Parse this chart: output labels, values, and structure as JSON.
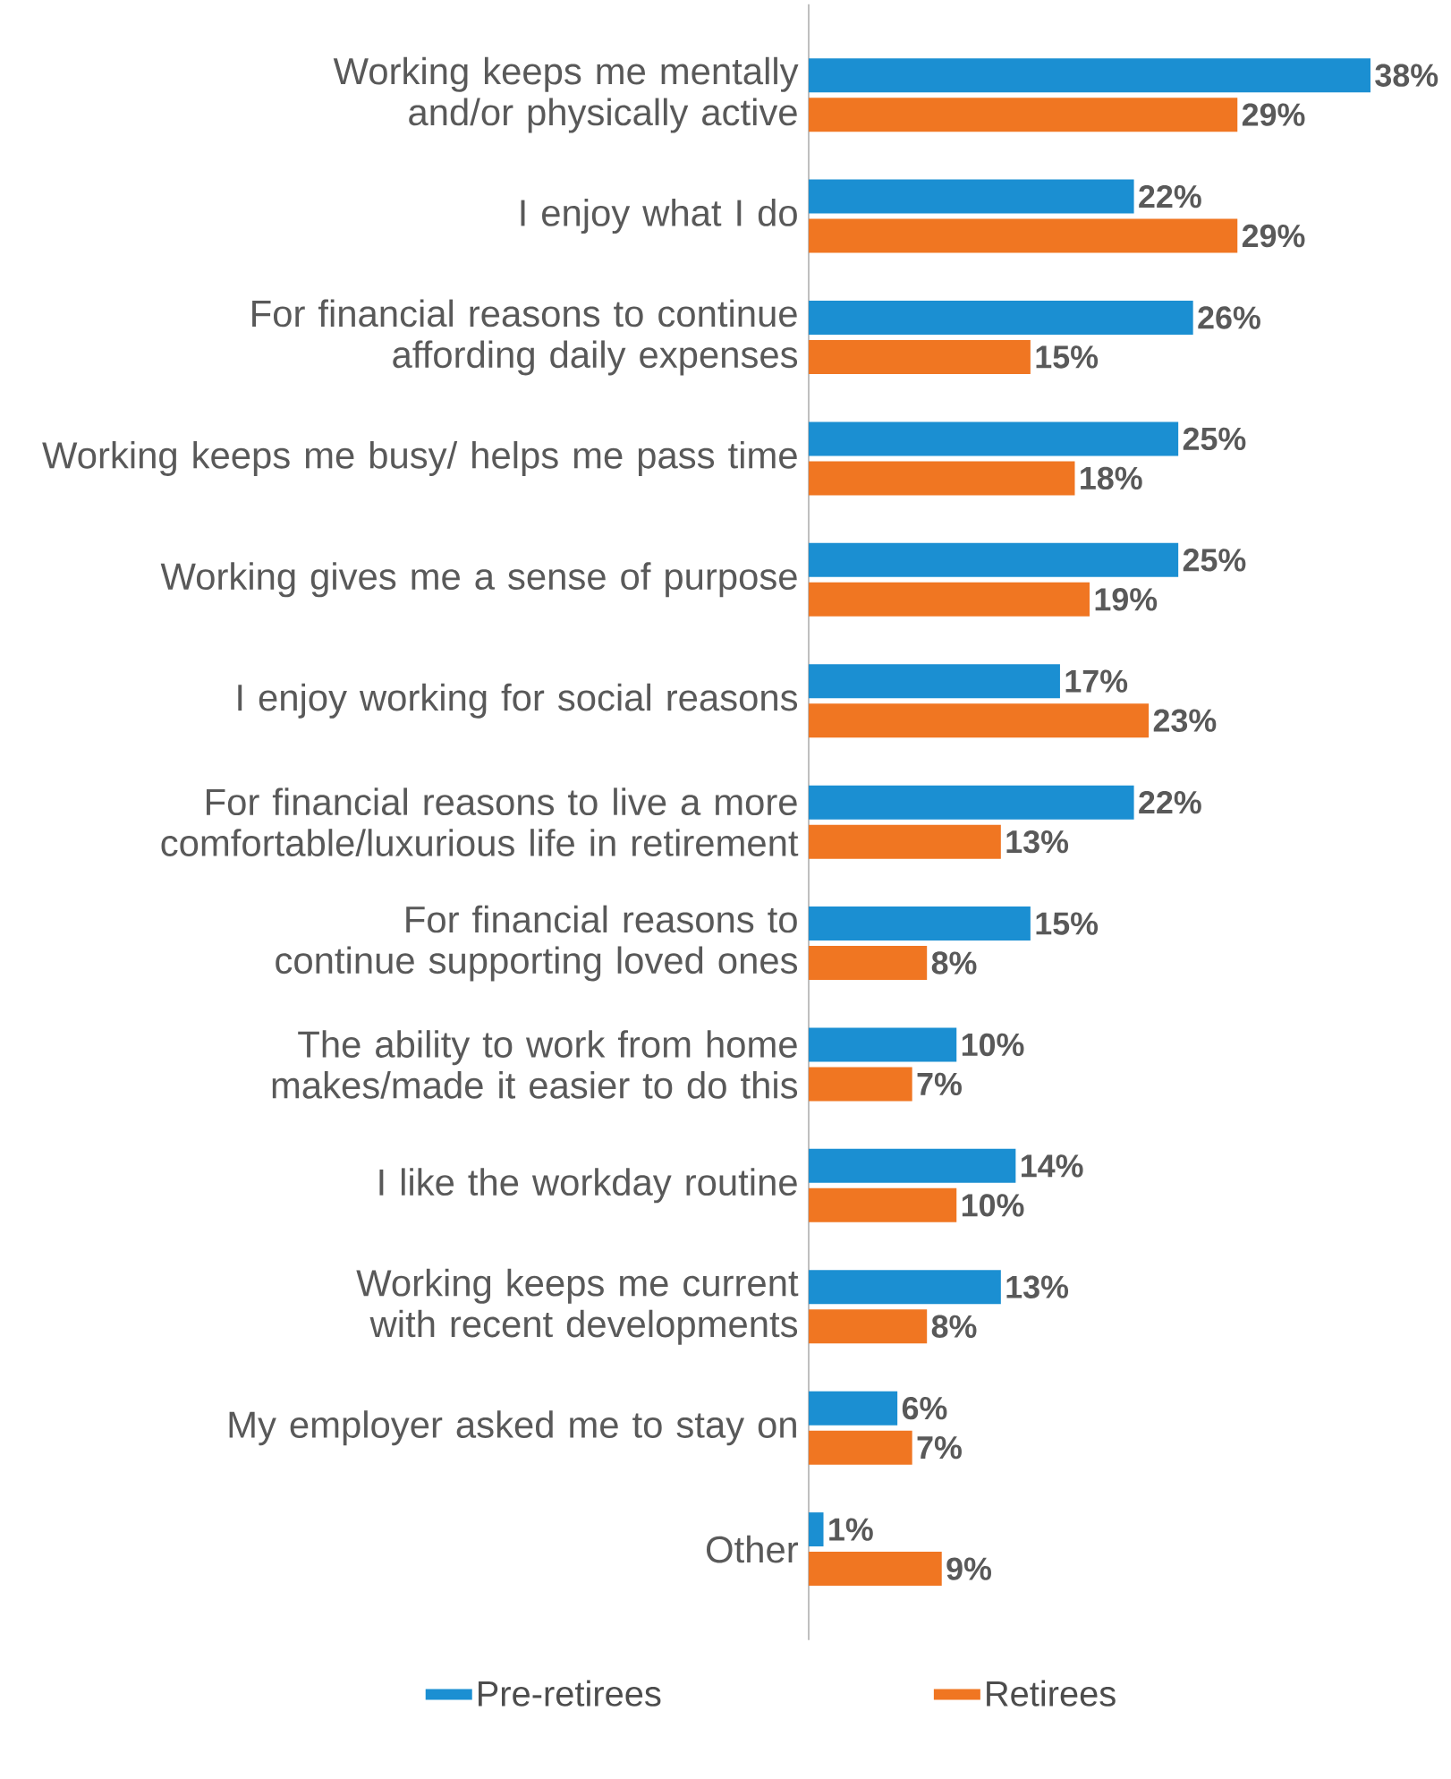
{
  "chart_data": {
    "type": "bar",
    "orientation": "horizontal",
    "categories": [
      "Working keeps me mentally and/or physically active",
      "I enjoy what I do",
      "For financial reasons to continue affording daily expenses",
      "Working keeps me busy/ helps me pass time",
      "Working gives me a sense of purpose",
      "I enjoy working for social reasons",
      "For financial reasons to live a more comfortable/luxurious life in retirement",
      "For financial reasons to continue supporting loved ones",
      "The ability to work from home makes/made it easier to do this",
      "I like the workday routine",
      "Working keeps me current with recent developments",
      "My employer asked me to stay on",
      "Other"
    ],
    "series": [
      {
        "name": "Pre-retirees",
        "color": "#1b8fd2",
        "values": [
          38,
          22,
          26,
          25,
          25,
          17,
          22,
          15,
          10,
          14,
          13,
          6,
          1
        ],
        "value_labels": [
          "38%",
          "22%",
          "26%",
          "25%",
          "25%",
          "17%",
          "22%",
          "15%",
          "10%",
          "14%",
          "13%",
          "6%",
          "1%"
        ]
      },
      {
        "name": "Retirees",
        "color": "#f07622",
        "values": [
          29,
          29,
          15,
          18,
          19,
          23,
          13,
          8,
          7,
          10,
          8,
          7,
          9
        ],
        "value_labels": [
          "29%",
          "29%",
          "15%",
          "18%",
          "19%",
          "23%",
          "13%",
          "8%",
          "7%",
          "10%",
          "8%",
          "7%",
          "9%"
        ]
      }
    ],
    "xlim": [
      0,
      38
    ],
    "tick_labels": "y",
    "legend": "bottom"
  }
}
